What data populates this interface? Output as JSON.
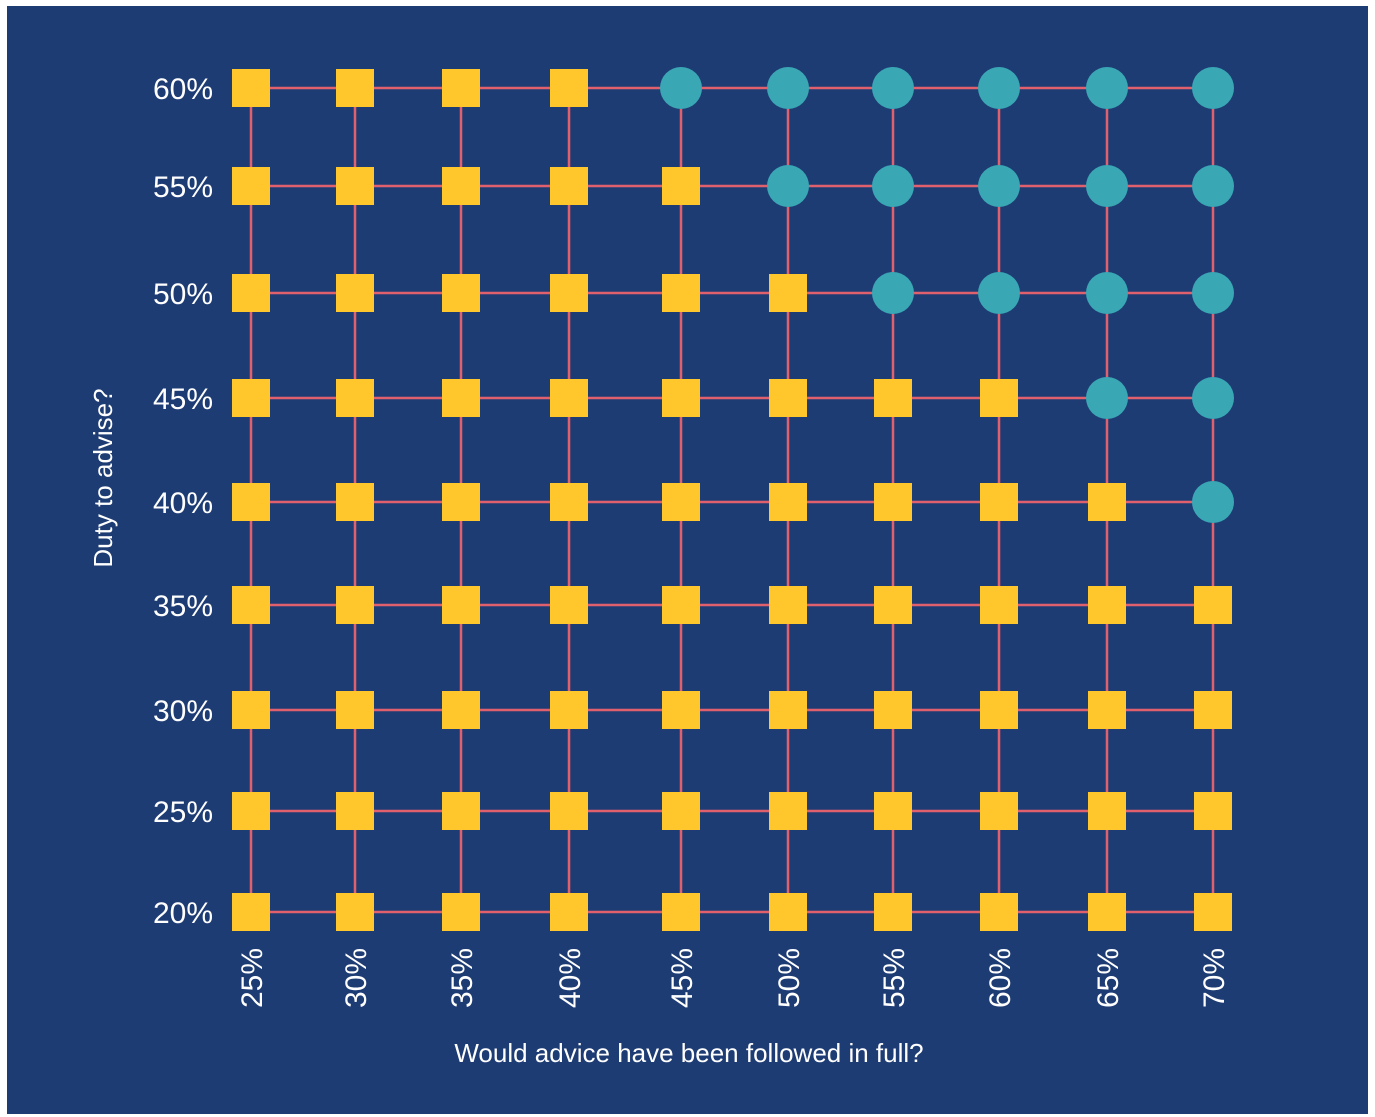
{
  "chart_data": {
    "type": "scatter",
    "xlabel": "Would advice have been followed in full?",
    "ylabel": "Duty to advise?",
    "x_categories": [
      "25%",
      "30%",
      "35%",
      "40%",
      "45%",
      "50%",
      "55%",
      "60%",
      "65%",
      "70%"
    ],
    "y_categories": [
      "20%",
      "25%",
      "30%",
      "35%",
      "40%",
      "45%",
      "50%",
      "55%",
      "60%"
    ],
    "marker_legend": {
      "square": "yellow square",
      "circle": "teal circle"
    },
    "grid": [
      [
        "square",
        "square",
        "square",
        "square",
        "square",
        "square",
        "square",
        "square",
        "square",
        "square"
      ],
      [
        "square",
        "square",
        "square",
        "square",
        "square",
        "square",
        "square",
        "square",
        "square",
        "square"
      ],
      [
        "square",
        "square",
        "square",
        "square",
        "square",
        "square",
        "square",
        "square",
        "square",
        "square"
      ],
      [
        "square",
        "square",
        "square",
        "square",
        "square",
        "square",
        "square",
        "square",
        "square",
        "square"
      ],
      [
        "square",
        "square",
        "square",
        "square",
        "square",
        "square",
        "square",
        "square",
        "square",
        "circle"
      ],
      [
        "square",
        "square",
        "square",
        "square",
        "square",
        "square",
        "square",
        "square",
        "circle",
        "circle"
      ],
      [
        "square",
        "square",
        "square",
        "square",
        "square",
        "square",
        "circle",
        "circle",
        "circle",
        "circle"
      ],
      [
        "square",
        "square",
        "square",
        "square",
        "square",
        "circle",
        "circle",
        "circle",
        "circle",
        "circle"
      ],
      [
        "square",
        "square",
        "square",
        "square",
        "circle",
        "circle",
        "circle",
        "circle",
        "circle",
        "circle"
      ]
    ],
    "colors": {
      "background": "#1e3c74",
      "gridline": "#e0606e",
      "square": "#ffc72c",
      "circle": "#3aa7b4",
      "text": "#ffffff"
    }
  }
}
